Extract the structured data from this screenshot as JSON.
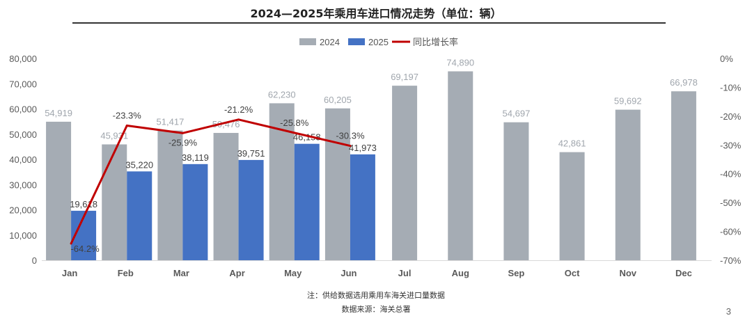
{
  "chart_data": {
    "type": "bar",
    "title": "2024—2025年乘用车进口情况走势（单位：辆）",
    "categories": [
      "Jan",
      "Feb",
      "Mar",
      "Apr",
      "May",
      "Jun",
      "Jul",
      "Aug",
      "Sep",
      "Oct",
      "Nov",
      "Dec"
    ],
    "series": [
      {
        "name": "2024",
        "type": "bar",
        "color": "#a5acb4",
        "values": [
          54919,
          45931,
          51417,
          50476,
          62230,
          60205,
          69197,
          74890,
          54697,
          42861,
          59692,
          66978
        ]
      },
      {
        "name": "2025",
        "type": "bar",
        "color": "#4472c4",
        "values": [
          19618,
          35220,
          38119,
          39751,
          46158,
          41973,
          null,
          null,
          null,
          null,
          null,
          null
        ]
      },
      {
        "name": "同比增长率",
        "type": "line",
        "axis": "right",
        "color": "#c00000",
        "values": [
          -64.2,
          -23.3,
          -25.9,
          -21.2,
          -25.8,
          -30.3,
          null,
          null,
          null,
          null,
          null,
          null
        ]
      }
    ],
    "labels_2024": [
      "54,919",
      "45,931",
      "51,417",
      "50,476",
      "62,230",
      "60,205",
      "69,197",
      "74,890",
      "54,697",
      "42,861",
      "59,692",
      "66,978"
    ],
    "labels_2025": [
      "19,618",
      "35,220",
      "38,119",
      "39,751",
      "46,158",
      "41,973"
    ],
    "labels_growth": [
      "-64.2%",
      "-23.3%",
      "-25.9%",
      "-21.2%",
      "-25.8%",
      "-30.3%"
    ],
    "y_left": {
      "min": 0,
      "max": 80000,
      "ticks": [
        "0",
        "10,000",
        "20,000",
        "30,000",
        "40,000",
        "50,000",
        "60,000",
        "70,000",
        "80,000"
      ]
    },
    "y_right": {
      "min": -70,
      "max": 0,
      "ticks": [
        "0%",
        "-10%",
        "-20%",
        "-30%",
        "-40%",
        "-50%",
        "-60%",
        "-70%"
      ]
    },
    "legend_position": "top",
    "grid": false
  },
  "notes": {
    "line1": "注：供给数据选用乘用车海关进口量数据",
    "line2": "数据来源：海关总署"
  },
  "page_number": "3"
}
